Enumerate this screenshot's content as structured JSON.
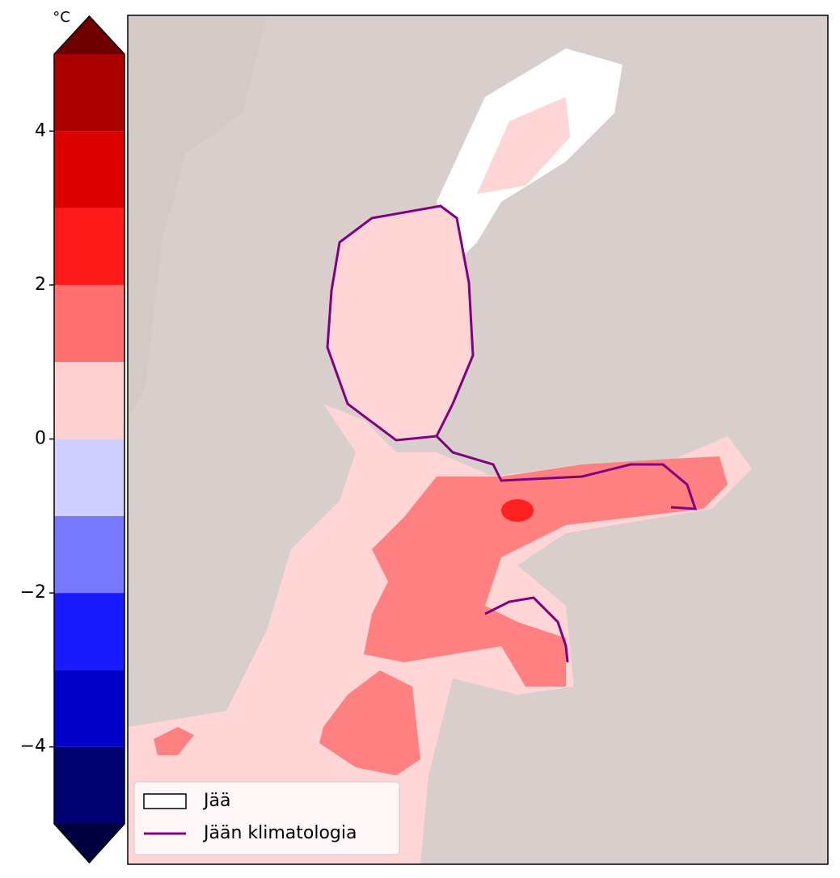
{
  "colorbar": {
    "unit": "°C",
    "levels": [
      -5,
      -4,
      -3,
      -2,
      -1,
      0,
      1,
      2,
      3,
      4,
      5
    ],
    "colors": [
      "#00006e",
      "#0000c8",
      "#1a1aff",
      "#7878ff",
      "#d0d0ff",
      "#ffd0d0",
      "#ff7070",
      "#ff1a1a",
      "#dd0000",
      "#aa0000"
    ],
    "extend_colors": [
      "#000040",
      "#700000"
    ],
    "ticks": [
      {
        "value": -4,
        "label": "−4"
      },
      {
        "value": -2,
        "label": "−2"
      },
      0,
      2,
      4
    ]
  },
  "legend": {
    "items": [
      {
        "label": "Jää",
        "color": "#ffffff"
      },
      {
        "label": "Jään klimatologia",
        "color": "#800080"
      }
    ]
  }
}
